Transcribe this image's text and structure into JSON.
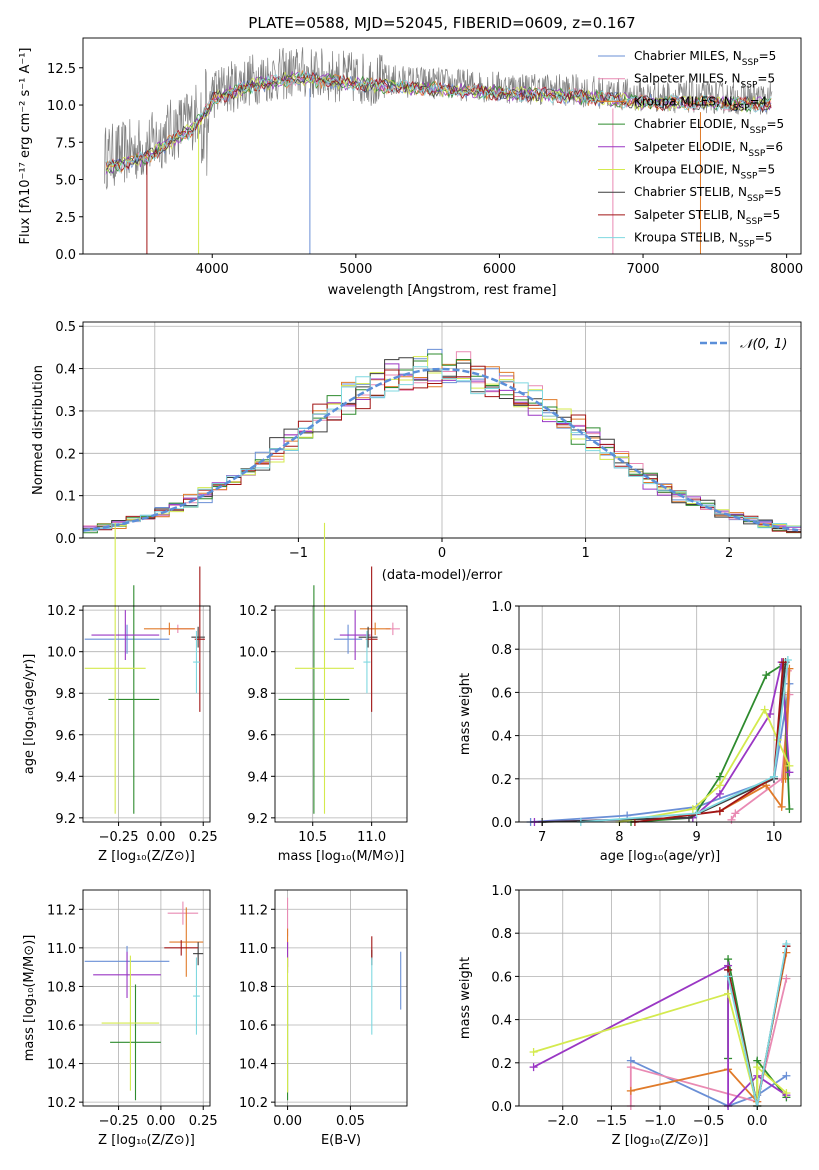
{
  "chart_data": [
    {
      "type": "line",
      "title": "PLATE=0588, MJD=52045, FIBERID=0609, z=0.167",
      "xlabel": "wavelength [Angstrom, rest frame]",
      "ylabel": "Flux [fλ10⁻¹⁷ erg cm⁻² s⁻¹ A⁻¹]",
      "xlim": [
        3100,
        8100
      ],
      "ylim": [
        0,
        14.5
      ],
      "xticks": [
        "4000",
        "5000",
        "6000",
        "7000",
        "8000"
      ],
      "yticks": [
        "0.0",
        "2.5",
        "5.0",
        "7.5",
        "10.0",
        "12.5"
      ],
      "legend_position": "right",
      "observed_spectrum": {
        "color": "#808080",
        "x": [
          3250,
          3400,
          3550,
          3700,
          3850,
          4000,
          4300,
          4600,
          5000,
          5500,
          6000,
          6500,
          7000,
          7500,
          7900
        ],
        "y": [
          6.5,
          6.8,
          7.2,
          8.2,
          9.0,
          10.8,
          11.8,
          12.2,
          11.8,
          11.5,
          11.2,
          11.0,
          10.6,
          10.5,
          10.4
        ]
      },
      "series": [
        {
          "name": "Chabrier MILES, N_SSP=5",
          "color": "#6a8fd6"
        },
        {
          "name": "Salpeter MILES, N_SSP=5",
          "color": "#e98ab3"
        },
        {
          "name": "Kroupa MILES, N_SSP=4",
          "color": "#e07b2a"
        },
        {
          "name": "Chabrier ELODIE, N_SSP=5",
          "color": "#2e8b2e"
        },
        {
          "name": "Salpeter ELODIE, N_SSP=6",
          "color": "#9a37c4"
        },
        {
          "name": "Kroupa ELODIE, N_SSP=5",
          "color": "#d4ea4e"
        },
        {
          "name": "Chabrier STELIB, N_SSP=5",
          "color": "#3d3d3d"
        },
        {
          "name": "Salpeter STELIB, N_SSP=5",
          "color": "#a11515"
        },
        {
          "name": "Kroupa STELIB, N_SSP=5",
          "color": "#7fd8e0"
        }
      ]
    },
    {
      "type": "histogram",
      "xlabel": "(data-model)/error",
      "ylabel": "Normed distribution",
      "xlim": [
        -2.5,
        2.5
      ],
      "ylim": [
        0,
        0.51
      ],
      "xticks": [
        "−2",
        "−1",
        "0",
        "1",
        "2"
      ],
      "yticks": [
        "0.0",
        "0.1",
        "0.2",
        "0.3",
        "0.4",
        "0.5"
      ],
      "reference_curve": {
        "name": "𝒩(0, 1)",
        "color": "#5b8fd9"
      },
      "bin_edges_step": 0.1
    },
    {
      "type": "scatter",
      "xlabel": "Z [log₁₀(Z/Z⊙)]",
      "ylabel": "age  [log₁₀(age/yr)]",
      "xlim": [
        -0.46,
        0.29
      ],
      "ylim": [
        9.18,
        10.22
      ],
      "xticks": [
        {
          "v": -0.25,
          "t": "−0.25"
        },
        {
          "v": 0.0,
          "t": "0.00"
        },
        {
          "v": 0.25,
          "t": "0.25"
        }
      ],
      "yticks": [
        {
          "v": 9.2,
          "t": "9.2"
        },
        {
          "v": 9.4,
          "t": "9.4"
        },
        {
          "v": 9.6,
          "t": "9.6"
        },
        {
          "v": 9.8,
          "t": "9.8"
        },
        {
          "v": 10.0,
          "t": "10.0"
        },
        {
          "v": 10.2,
          "t": "10.2"
        }
      ],
      "points": [
        {
          "series": 0,
          "x": -0.2,
          "xerr": 0.25,
          "y": 10.06,
          "yerr": 0.07
        },
        {
          "series": 1,
          "x": 0.1,
          "xerr": 0.1,
          "y": 10.11,
          "yerr": 0.02
        },
        {
          "series": 2,
          "x": 0.05,
          "xerr": 0.15,
          "y": 10.11,
          "yerr": 0.03
        },
        {
          "series": 3,
          "x": -0.16,
          "xerr": 0.15,
          "y": 9.77,
          "yerr": 0.55
        },
        {
          "series": 4,
          "x": -0.21,
          "xerr": 0.2,
          "y": 10.08,
          "yerr": 0.12
        },
        {
          "series": 5,
          "x": -0.27,
          "xerr": 0.18,
          "y": 9.92,
          "yerr": 0.7
        },
        {
          "series": 6,
          "x": 0.22,
          "xerr": 0.04,
          "y": 10.07,
          "yerr": 0.05
        },
        {
          "series": 7,
          "x": 0.23,
          "xerr": 0.03,
          "y": 10.06,
          "yerr": 0.35
        },
        {
          "series": 8,
          "x": 0.21,
          "xerr": 0.02,
          "y": 9.95,
          "yerr": 0.15
        }
      ]
    },
    {
      "type": "scatter",
      "xlabel": "mass [log₁₀(M/M⊙)]",
      "ylabel": "",
      "xlim": [
        10.18,
        11.3
      ],
      "ylim": [
        9.18,
        10.22
      ],
      "xticks": [
        {
          "v": 10.5,
          "t": "10.5"
        },
        {
          "v": 11.0,
          "t": "11.0"
        }
      ],
      "yticks": [
        {
          "v": 9.2,
          "t": "9.2"
        },
        {
          "v": 9.4,
          "t": "9.4"
        },
        {
          "v": 9.6,
          "t": "9.6"
        },
        {
          "v": 9.8,
          "t": "9.8"
        },
        {
          "v": 10.0,
          "t": "10.0"
        },
        {
          "v": 10.2,
          "t": "10.2"
        }
      ],
      "points": [
        {
          "series": 0,
          "x": 10.8,
          "xerr": 0.12,
          "y": 10.06,
          "yerr": 0.07
        },
        {
          "series": 1,
          "x": 11.18,
          "xerr": 0.06,
          "y": 10.11,
          "yerr": 0.03
        },
        {
          "series": 2,
          "x": 11.03,
          "xerr": 0.13,
          "y": 10.11,
          "yerr": 0.03
        },
        {
          "series": 3,
          "x": 10.51,
          "xerr": 0.3,
          "y": 9.77,
          "yerr": 0.55
        },
        {
          "series": 4,
          "x": 10.86,
          "xerr": 0.13,
          "y": 10.08,
          "yerr": 0.12
        },
        {
          "series": 5,
          "x": 10.6,
          "xerr": 0.25,
          "y": 9.92,
          "yerr": 0.7
        },
        {
          "series": 6,
          "x": 10.97,
          "xerr": 0.08,
          "y": 10.07,
          "yerr": 0.05
        },
        {
          "series": 7,
          "x": 11.0,
          "xerr": 0.05,
          "y": 10.06,
          "yerr": 0.35
        },
        {
          "series": 8,
          "x": 10.96,
          "xerr": 0.03,
          "y": 9.95,
          "yerr": 0.15
        }
      ]
    },
    {
      "type": "line",
      "xlabel": "age  [log₁₀(age/yr)]",
      "ylabel": "mass weight",
      "xlim": [
        6.7,
        10.35
      ],
      "ylim": [
        0,
        1.0
      ],
      "xticks": [
        {
          "v": 7,
          "t": "7"
        },
        {
          "v": 8,
          "t": "8"
        },
        {
          "v": 9,
          "t": "9"
        },
        {
          "v": 10,
          "t": "10"
        }
      ],
      "yticks": [
        {
          "v": 0,
          "t": "0.0"
        },
        {
          "v": 0.2,
          "t": "0.2"
        },
        {
          "v": 0.4,
          "t": "0.4"
        },
        {
          "v": 0.6,
          "t": "0.6"
        },
        {
          "v": 0.8,
          "t": "0.8"
        },
        {
          "v": 1.0,
          "t": "1.0"
        }
      ],
      "lines": [
        {
          "series": 0,
          "x": [
            6.85,
            8.1,
            9.0,
            10.0,
            10.2
          ],
          "y": [
            0.0,
            0.03,
            0.07,
            0.2,
            0.64
          ]
        },
        {
          "series": 1,
          "x": [
            9.45,
            9.5,
            10.1,
            10.2,
            10.18
          ],
          "y": [
            0.01,
            0.04,
            0.2,
            0.59,
            0.7
          ]
        },
        {
          "series": 2,
          "x": [
            9.3,
            9.9,
            10.1,
            10.2,
            10.15
          ],
          "y": [
            0.05,
            0.17,
            0.07,
            0.71,
            0.2
          ]
        },
        {
          "series": 3,
          "x": [
            8.15,
            8.95,
            9.3,
            9.9,
            10.12,
            10.2
          ],
          "y": [
            0.0,
            0.02,
            0.21,
            0.68,
            0.73,
            0.06
          ]
        },
        {
          "series": 4,
          "x": [
            6.9,
            8.95,
            9.3,
            9.95,
            10.1,
            10.2
          ],
          "y": [
            0.0,
            0.02,
            0.13,
            0.5,
            0.74,
            0.23
          ]
        },
        {
          "series": 5,
          "x": [
            8.0,
            8.95,
            9.3,
            9.88,
            10.05,
            10.2
          ],
          "y": [
            0.0,
            0.06,
            0.17,
            0.52,
            0.38,
            0.26
          ]
        },
        {
          "series": 6,
          "x": [
            7.0,
            8.9,
            10.0,
            10.15
          ],
          "y": [
            0.0,
            0.02,
            0.2,
            0.74
          ]
        },
        {
          "series": 7,
          "x": [
            8.2,
            9.3,
            10.0,
            10.12
          ],
          "y": [
            0.0,
            0.05,
            0.21,
            0.74
          ]
        },
        {
          "series": 8,
          "x": [
            7.5,
            9.0,
            10.0,
            10.18
          ],
          "y": [
            0.0,
            0.04,
            0.21,
            0.75
          ]
        }
      ]
    },
    {
      "type": "scatter",
      "xlabel": "Z [log₁₀(Z/Z⊙)]",
      "ylabel": "mass [log₁₀(M/M⊙)]",
      "xlim": [
        -0.46,
        0.29
      ],
      "ylim": [
        10.18,
        11.3
      ],
      "xticks": [
        {
          "v": -0.25,
          "t": "−0.25"
        },
        {
          "v": 0.0,
          "t": "0.00"
        },
        {
          "v": 0.25,
          "t": "0.25"
        }
      ],
      "yticks": [
        {
          "v": 10.2,
          "t": "10.2"
        },
        {
          "v": 10.4,
          "t": "10.4"
        },
        {
          "v": 10.6,
          "t": "10.6"
        },
        {
          "v": 10.8,
          "t": "10.8"
        },
        {
          "v": 11.0,
          "t": "11.0"
        },
        {
          "v": 11.2,
          "t": "11.2"
        }
      ],
      "points": [
        {
          "series": 0,
          "x": -0.2,
          "xerr": 0.25,
          "y": 10.93,
          "yerr": 0.08
        },
        {
          "series": 1,
          "x": 0.13,
          "xerr": 0.09,
          "y": 11.18,
          "yerr": 0.06
        },
        {
          "series": 2,
          "x": 0.15,
          "xerr": 0.1,
          "y": 11.03,
          "yerr": 0.18
        },
        {
          "series": 3,
          "x": -0.15,
          "xerr": 0.15,
          "y": 10.51,
          "yerr": 0.3
        },
        {
          "series": 4,
          "x": -0.2,
          "xerr": 0.2,
          "y": 10.86,
          "yerr": 0.12
        },
        {
          "series": 5,
          "x": -0.18,
          "xerr": 0.17,
          "y": 10.61,
          "yerr": 0.35
        },
        {
          "series": 6,
          "x": 0.22,
          "xerr": 0.03,
          "y": 10.97,
          "yerr": 0.06
        },
        {
          "series": 7,
          "x": 0.12,
          "xerr": 0.1,
          "y": 11.0,
          "yerr": 0.04
        },
        {
          "series": 8,
          "x": 0.21,
          "xerr": 0.02,
          "y": 10.75,
          "yerr": 0.2
        }
      ]
    },
    {
      "type": "scatter",
      "xlabel": "E(B-V)",
      "ylabel": "",
      "xlim": [
        -0.01,
        0.095
      ],
      "ylim": [
        10.18,
        11.3
      ],
      "xticks": [
        {
          "v": 0.0,
          "t": "0.00"
        },
        {
          "v": 0.05,
          "t": "0.05"
        }
      ],
      "yticks": [
        {
          "v": 10.2,
          "t": "10.2"
        },
        {
          "v": 10.4,
          "t": "10.4"
        },
        {
          "v": 10.6,
          "t": "10.6"
        },
        {
          "v": 10.8,
          "t": "10.8"
        },
        {
          "v": 11.0,
          "t": "11.0"
        },
        {
          "v": 11.2,
          "t": "11.2"
        }
      ],
      "points": [
        {
          "series": 0,
          "x": 0.09,
          "xerr": 0.0,
          "y": 10.83,
          "yerr": 0.15
        },
        {
          "series": 1,
          "x": 0.0,
          "xerr": 0.0,
          "y": 11.16,
          "yerr": 0.1
        },
        {
          "series": 2,
          "x": 0.0,
          "xerr": 0.0,
          "y": 11.0,
          "yerr": 0.1
        },
        {
          "series": 3,
          "x": 0.0,
          "xerr": 0.0,
          "y": 10.51,
          "yerr": 0.3
        },
        {
          "series": 4,
          "x": 0.0,
          "xerr": 0.0,
          "y": 10.95,
          "yerr": 0.08
        },
        {
          "series": 5,
          "x": 0.0,
          "xerr": 0.0,
          "y": 10.6,
          "yerr": 0.35
        },
        {
          "series": 6,
          "x": 0.067,
          "xerr": 0.0,
          "y": 10.95,
          "yerr": 0.04
        },
        {
          "series": 7,
          "x": 0.067,
          "xerr": 0.0,
          "y": 11.0,
          "yerr": 0.06
        },
        {
          "series": 8,
          "x": 0.067,
          "xerr": 0.0,
          "y": 10.75,
          "yerr": 0.2
        }
      ]
    },
    {
      "type": "line",
      "xlabel": "Z [log₁₀(Z/Z⊙)]",
      "ylabel": "mass weight",
      "xlim": [
        -2.45,
        0.45
      ],
      "ylim": [
        0,
        1.0
      ],
      "xticks": [
        {
          "v": -2.0,
          "t": "−2.0"
        },
        {
          "v": -1.5,
          "t": "−1.5"
        },
        {
          "v": -1.0,
          "t": "−1.0"
        },
        {
          "v": -0.5,
          "t": "−0.5"
        },
        {
          "v": 0.0,
          "t": "0.0"
        }
      ],
      "yticks": [
        {
          "v": 0,
          "t": "0.0"
        },
        {
          "v": 0.2,
          "t": "0.2"
        },
        {
          "v": 0.4,
          "t": "0.4"
        },
        {
          "v": 0.6,
          "t": "0.6"
        },
        {
          "v": 0.8,
          "t": "0.8"
        },
        {
          "v": 1.0,
          "t": "1.0"
        }
      ],
      "lines": [
        {
          "series": 0,
          "x": [
            -1.3,
            -0.3,
            0.0,
            0.3
          ],
          "y": [
            0.21,
            0.0,
            0.05,
            0.14
          ]
        },
        {
          "series": 1,
          "x": [
            -1.3,
            -1.3,
            0.0,
            0.3
          ],
          "y": [
            0.0,
            0.18,
            0.02,
            0.59
          ]
        },
        {
          "series": 2,
          "x": [
            -1.3,
            -0.3,
            0.0,
            0.3
          ],
          "y": [
            0.07,
            0.17,
            0.02,
            0.71
          ]
        },
        {
          "series": 3,
          "x": [
            -0.3,
            -0.3,
            0.0,
            0.0,
            0.3
          ],
          "y": [
            0.22,
            0.68,
            0.0,
            0.21,
            0.04
          ]
        },
        {
          "series": 4,
          "x": [
            -2.3,
            -0.3,
            -0.3,
            0.0,
            0.3
          ],
          "y": [
            0.18,
            0.65,
            0.0,
            0.14,
            0.05
          ]
        },
        {
          "series": 5,
          "x": [
            -2.3,
            -0.3,
            0.0,
            0.0,
            0.3
          ],
          "y": [
            0.25,
            0.52,
            0.0,
            0.18,
            0.06
          ]
        },
        {
          "series": 6,
          "x": [
            -0.3,
            0.0,
            0.3
          ],
          "y": [
            0.63,
            0.0,
            0.74
          ]
        },
        {
          "series": 7,
          "x": [
            -0.3,
            0.0,
            0.3
          ],
          "y": [
            0.63,
            0.0,
            0.74
          ]
        },
        {
          "series": 8,
          "x": [
            -0.3,
            0.0,
            0.3
          ],
          "y": [
            0.6,
            0.0,
            0.75
          ]
        }
      ]
    }
  ]
}
